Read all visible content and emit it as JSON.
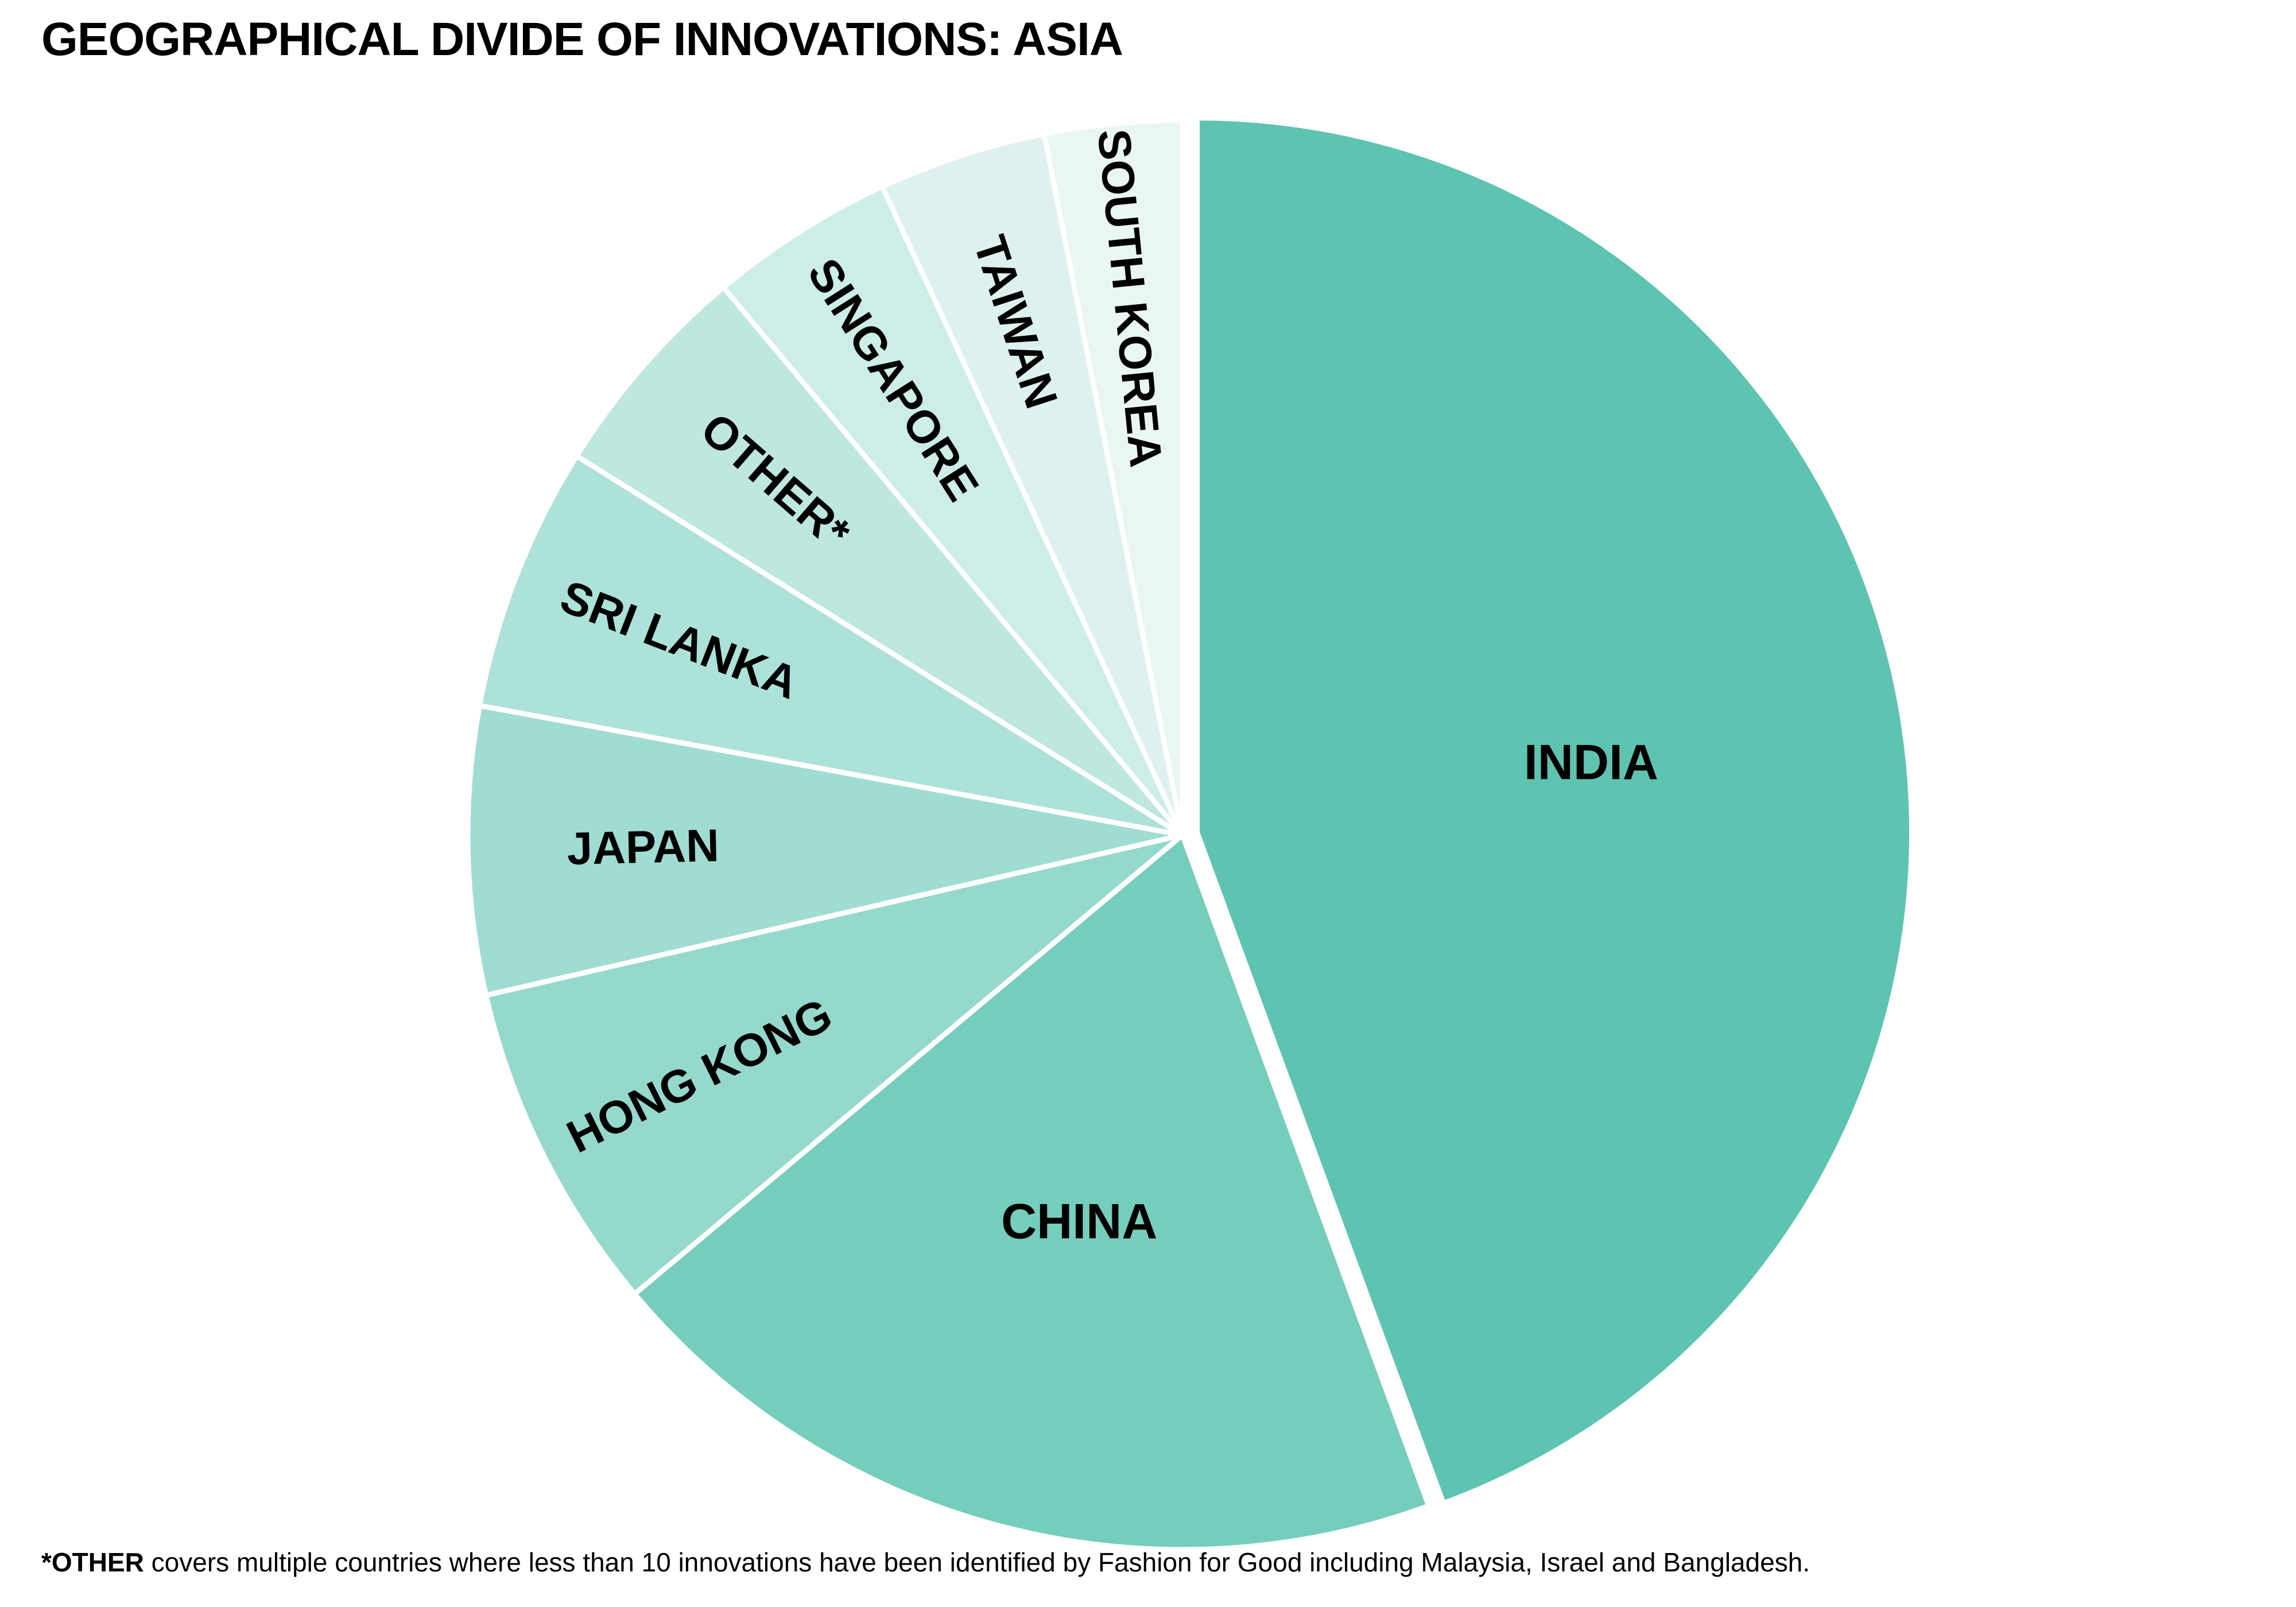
{
  "chart_data": {
    "type": "pie",
    "title": "GEOGRAPHICAL DIVIDE OF INNOVATIONS: ASIA",
    "unit": "share of innovations (%)",
    "slices": [
      {
        "label": "INDIA",
        "value": 44.4,
        "color": "#5dc4b1"
      },
      {
        "label": "CHINA",
        "value": 19.5,
        "color": "#75cdbc"
      },
      {
        "label": "HONG KONG",
        "value": 7.5,
        "color": "#94d9cc"
      },
      {
        "label": "JAPAN",
        "value": 6.5,
        "color": "#9fddd2"
      },
      {
        "label": "SRI LANKA",
        "value": 6.0,
        "color": "#ade2d9"
      },
      {
        "label": "OTHER*",
        "value": 5.0,
        "color": "#bde7df"
      },
      {
        "label": "SINGAPORE",
        "value": 4.2,
        "color": "#cdede7"
      },
      {
        "label": "TAIWAN",
        "value": 3.8,
        "color": "#ddf2ee"
      },
      {
        "label": "SOUTH KOREA",
        "value": 3.1,
        "color": "#e9f6f3"
      }
    ],
    "legend": "none"
  },
  "footnote": {
    "bold": "*OTHER",
    "text": " covers multiple countries where less than 10 innovations have been identified by Fashion for Good including Malaysia, Israel and Bangladesh."
  }
}
